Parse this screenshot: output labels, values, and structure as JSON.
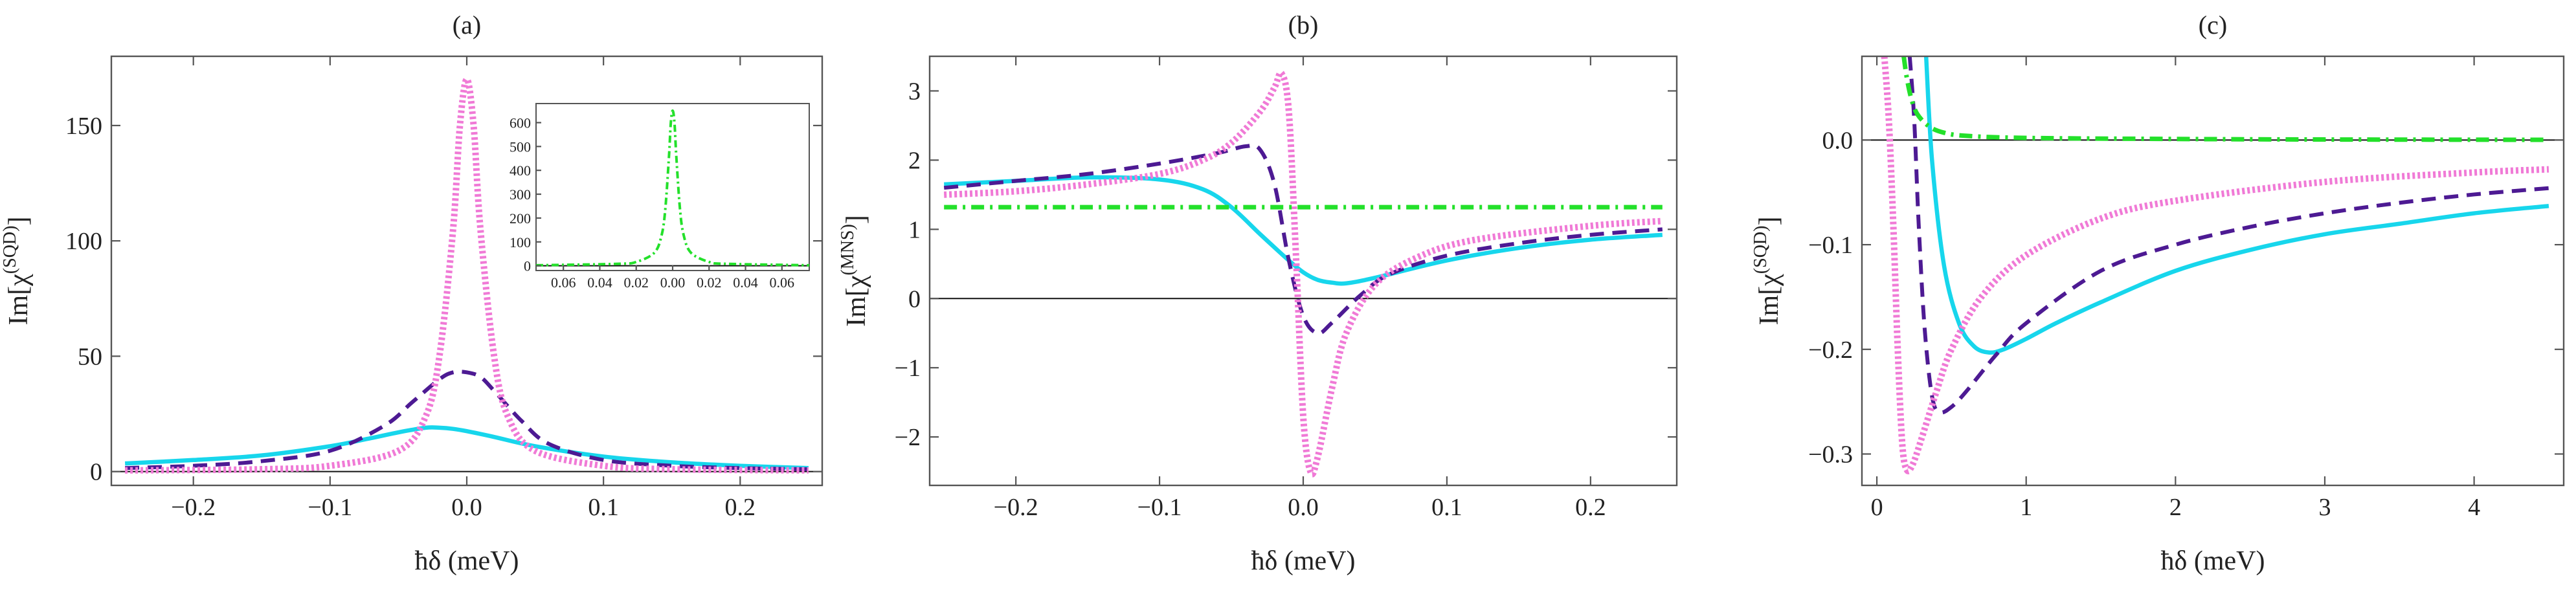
{
  "figure": {
    "colors": {
      "solid": "#17d6ec",
      "dashed": "#4d1a93",
      "dotted": "#f07ad6",
      "dashdot": "#23e02a",
      "axes": "#555555",
      "zero": "#111111"
    }
  },
  "chart_data": [
    {
      "type": "line",
      "panel": "(a)",
      "title": "(a)",
      "xlabel": "ħδ (meV)",
      "ylabel": "Im[χ",
      "ylabel_superscript": "(SQD)",
      "ylabel_tail": "]",
      "xlim": [
        -0.26,
        0.26
      ],
      "ylim": [
        -6,
        180
      ],
      "xticks": [
        -0.2,
        -0.1,
        0.0,
        0.1,
        0.2
      ],
      "xtick_labels": [
        "−0.2",
        "−0.1",
        "0.0",
        "0.1",
        "0.2"
      ],
      "yticks": [
        0,
        50,
        100,
        150
      ],
      "ytick_labels": [
        "0",
        "50",
        "100",
        "150"
      ],
      "zero_line": true,
      "series": [
        {
          "name": "solid",
          "style": "solid",
          "color": "#17d6ec",
          "x": [
            -0.25,
            -0.2,
            -0.15,
            -0.1,
            -0.07,
            -0.05,
            -0.03,
            -0.02,
            -0.01,
            0.0,
            0.02,
            0.05,
            0.1,
            0.15,
            0.2,
            0.25
          ],
          "y": [
            3.5,
            5,
            7,
            11,
            14.5,
            17,
            19,
            19,
            18.5,
            17.5,
            15,
            11,
            6.5,
            4,
            2.5,
            1.5
          ]
        },
        {
          "name": "dashed",
          "style": "dashed",
          "color": "#4d1a93",
          "x": [
            -0.25,
            -0.2,
            -0.15,
            -0.1,
            -0.06,
            -0.04,
            -0.02,
            -0.01,
            0.0,
            0.01,
            0.02,
            0.04,
            0.06,
            0.1,
            0.15,
            0.2,
            0.25
          ],
          "y": [
            1.5,
            2.5,
            4.5,
            9,
            20,
            30,
            40,
            43,
            43,
            41,
            35,
            22,
            12,
            5,
            2.5,
            1.5,
            1
          ]
        },
        {
          "name": "dotted",
          "style": "dotted",
          "color": "#f07ad6",
          "x": [
            -0.25,
            -0.15,
            -0.1,
            -0.05,
            -0.03,
            -0.02,
            -0.01,
            -0.005,
            0.0,
            0.005,
            0.01,
            0.02,
            0.03,
            0.05,
            0.1,
            0.15,
            0.25
          ],
          "y": [
            0.5,
            1,
            2.5,
            9,
            24,
            50,
            105,
            150,
            170,
            150,
            105,
            50,
            24,
            9,
            2.5,
            1,
            0.5
          ]
        }
      ],
      "inset": {
        "type": "line",
        "xlim": [
          -0.075,
          0.075
        ],
        "ylim": [
          -20,
          680
        ],
        "xticks": [
          -0.06,
          -0.04,
          -0.02,
          0.0,
          0.02,
          0.04,
          0.06
        ],
        "xtick_labels": [
          "0.06",
          "0.04",
          "0.02",
          "0.00",
          "0.02",
          "0.04",
          "0.06"
        ],
        "yticks": [
          0,
          100,
          200,
          300,
          400,
          500,
          600
        ],
        "ytick_labels": [
          "0",
          "100",
          "200",
          "300",
          "400",
          "500",
          "600"
        ],
        "series": [
          {
            "name": "dashdot",
            "style": "dashdot",
            "color": "#23e02a",
            "x": [
              -0.075,
              -0.03,
              -0.02,
              -0.01,
              -0.006,
              -0.004,
              -0.002,
              -0.001,
              0.0,
              0.001,
              0.002,
              0.004,
              0.006,
              0.01,
              0.02,
              0.03,
              0.075
            ],
            "y": [
              2,
              8,
              16,
              55,
              130,
              240,
              460,
              600,
              650,
              600,
              460,
              240,
              130,
              55,
              16,
              8,
              2
            ]
          }
        ]
      }
    },
    {
      "type": "line",
      "panel": "(b)",
      "title": "(b)",
      "xlabel": "ħδ (meV)",
      "ylabel": "Im[χ",
      "ylabel_superscript": "(MNS)",
      "ylabel_tail": "]",
      "xlim": [
        -0.26,
        0.26
      ],
      "ylim": [
        -2.7,
        3.5
      ],
      "xticks": [
        -0.2,
        -0.1,
        0.0,
        0.1,
        0.2
      ],
      "xtick_labels": [
        "−0.2",
        "−0.1",
        "0.0",
        "0.1",
        "0.2"
      ],
      "yticks": [
        -2,
        -1,
        0,
        1,
        2,
        3
      ],
      "ytick_labels": [
        "−2",
        "−1",
        "0",
        "1",
        "2",
        "3"
      ],
      "zero_line": true,
      "series": [
        {
          "name": "solid",
          "style": "solid",
          "color": "#17d6ec",
          "x": [
            -0.25,
            -0.2,
            -0.15,
            -0.1,
            -0.07,
            -0.05,
            -0.03,
            -0.01,
            0.0,
            0.01,
            0.02,
            0.03,
            0.05,
            0.1,
            0.15,
            0.2,
            0.25
          ],
          "y": [
            1.65,
            1.7,
            1.75,
            1.72,
            1.58,
            1.32,
            0.93,
            0.55,
            0.38,
            0.27,
            0.23,
            0.22,
            0.3,
            0.55,
            0.73,
            0.85,
            0.92
          ]
        },
        {
          "name": "dashed",
          "style": "dashed",
          "color": "#4d1a93",
          "x": [
            -0.25,
            -0.2,
            -0.15,
            -0.1,
            -0.06,
            -0.04,
            -0.03,
            -0.02,
            -0.01,
            0.0,
            0.01,
            0.02,
            0.04,
            0.06,
            0.1,
            0.15,
            0.2,
            0.25
          ],
          "y": [
            1.6,
            1.7,
            1.8,
            1.95,
            2.1,
            2.2,
            2.15,
            1.65,
            0.55,
            -0.25,
            -0.5,
            -0.35,
            0.05,
            0.35,
            0.62,
            0.8,
            0.92,
            1.0
          ]
        },
        {
          "name": "dotted",
          "style": "dotted",
          "color": "#f07ad6",
          "x": [
            -0.25,
            -0.2,
            -0.15,
            -0.1,
            -0.07,
            -0.05,
            -0.03,
            -0.02,
            -0.015,
            -0.01,
            -0.005,
            0.0,
            0.005,
            0.01,
            0.02,
            0.03,
            0.05,
            0.08,
            0.12,
            0.2,
            0.25
          ],
          "y": [
            1.5,
            1.55,
            1.65,
            1.8,
            2.0,
            2.25,
            2.7,
            3.05,
            3.25,
            2.7,
            0.6,
            -1.7,
            -2.5,
            -2.3,
            -1.3,
            -0.5,
            0.2,
            0.6,
            0.85,
            1.05,
            1.12
          ]
        },
        {
          "name": "dashdot",
          "style": "dashdot",
          "color": "#23e02a",
          "x": [
            -0.25,
            0.0,
            0.25
          ],
          "y": [
            1.32,
            1.32,
            1.32
          ]
        }
      ]
    },
    {
      "type": "line",
      "panel": "(c)",
      "title": "(c)",
      "xlabel": "ħδ (meV)",
      "ylabel": "Im[χ",
      "ylabel_superscript": "(SQD)",
      "ylabel_tail": "]",
      "xlim": [
        -0.1,
        4.6
      ],
      "ylim": [
        -0.33,
        0.08
      ],
      "xticks": [
        0,
        1,
        2,
        3,
        4
      ],
      "xtick_labels": [
        "0",
        "1",
        "2",
        "3",
        "4"
      ],
      "yticks": [
        -0.3,
        -0.2,
        -0.1,
        0.0
      ],
      "ytick_labels": [
        "−0.3",
        "−0.2",
        "−0.1",
        "0.0"
      ],
      "zero_line": true,
      "series": [
        {
          "name": "solid",
          "style": "solid",
          "color": "#17d6ec",
          "x": [
            0.33,
            0.37,
            0.45,
            0.55,
            0.65,
            0.75,
            0.85,
            1.0,
            1.2,
            1.5,
            2.0,
            2.5,
            3.0,
            3.5,
            4.0,
            4.5
          ],
          "y": [
            0.08,
            -0.02,
            -0.12,
            -0.175,
            -0.197,
            -0.203,
            -0.2,
            -0.19,
            -0.175,
            -0.155,
            -0.125,
            -0.105,
            -0.09,
            -0.08,
            -0.07,
            -0.063
          ]
        },
        {
          "name": "dashed",
          "style": "dashed",
          "color": "#4d1a93",
          "x": [
            0.22,
            0.25,
            0.28,
            0.32,
            0.37,
            0.42,
            0.5,
            0.6,
            0.8,
            1.0,
            1.5,
            2.0,
            2.5,
            3.0,
            3.5,
            4.0,
            4.5
          ],
          "y": [
            0.08,
            0.02,
            -0.08,
            -0.18,
            -0.245,
            -0.26,
            -0.255,
            -0.24,
            -0.205,
            -0.175,
            -0.125,
            -0.1,
            -0.083,
            -0.07,
            -0.06,
            -0.052,
            -0.046
          ]
        },
        {
          "name": "dotted",
          "style": "dotted",
          "color": "#f07ad6",
          "x": [
            0.05,
            0.08,
            0.11,
            0.14,
            0.17,
            0.2,
            0.24,
            0.3,
            0.4,
            0.5,
            0.7,
            1.0,
            1.5,
            2.0,
            3.0,
            4.0,
            4.5
          ],
          "y": [
            0.08,
            0.02,
            -0.08,
            -0.2,
            -0.29,
            -0.315,
            -0.31,
            -0.285,
            -0.24,
            -0.2,
            -0.15,
            -0.11,
            -0.075,
            -0.058,
            -0.04,
            -0.031,
            -0.028
          ]
        },
        {
          "name": "dashdot",
          "style": "dashdot",
          "color": "#23e02a",
          "x": [
            0.18,
            0.2,
            0.23,
            0.27,
            0.35,
            0.45,
            0.6,
            1.0,
            2.0,
            3.0,
            4.5
          ],
          "y": [
            0.08,
            0.06,
            0.04,
            0.025,
            0.013,
            0.007,
            0.004,
            0.002,
            0.001,
            0.0005,
            0.0002
          ]
        }
      ]
    }
  ]
}
